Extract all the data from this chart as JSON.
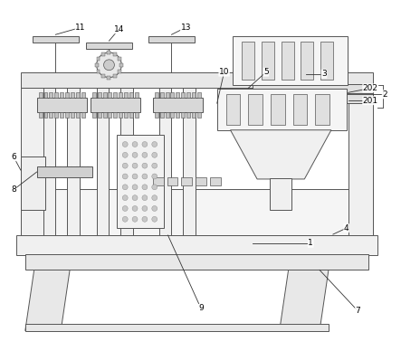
{
  "bg_color": "#ffffff",
  "line_color": "#555555",
  "lw": 0.7,
  "fig_width": 4.43,
  "fig_height": 3.88
}
